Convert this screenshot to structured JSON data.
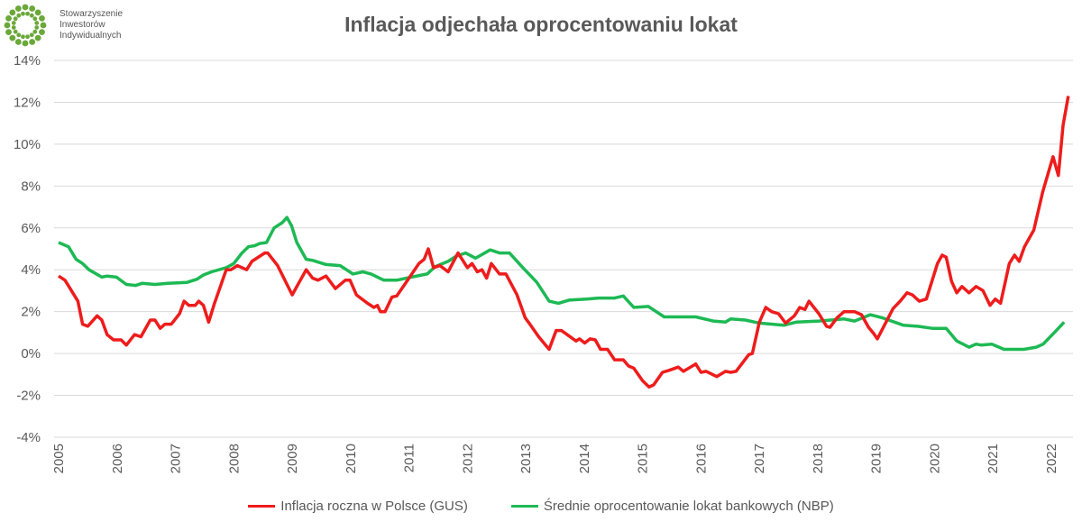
{
  "logo": {
    "lines": [
      "Stowarzyszenie",
      "Inwestorów",
      "Indywidualnych"
    ],
    "color": "#6aa83a"
  },
  "chart_data": {
    "type": "line",
    "title": "Inflacja odjechała oprocentowaniu lokat",
    "xlabel": "",
    "ylabel": "",
    "xlim": [
      2005,
      2022.3
    ],
    "ylim": [
      -4,
      14
    ],
    "y_ticks": [
      "14%",
      "12%",
      "10%",
      "8%",
      "6%",
      "4%",
      "2%",
      "0%",
      "-2%",
      "-4%"
    ],
    "x_ticks": [
      "2005",
      "2006",
      "2007",
      "2008",
      "2009",
      "2010",
      "2011",
      "2012",
      "2013",
      "2014",
      "2015",
      "2016",
      "2017",
      "2018",
      "2019",
      "2020",
      "2021",
      "2022"
    ],
    "grid": true,
    "legend": "bottom",
    "series": [
      {
        "name": "Inflacja roczna w Polsce (GUS)",
        "color": "#ee1c1c",
        "x": [
          2005.0,
          2005.11,
          2005.33,
          2005.41,
          2005.5,
          2005.66,
          2005.74,
          2005.83,
          2005.94,
          2006.07,
          2006.16,
          2006.3,
          2006.41,
          2006.57,
          2006.65,
          2006.74,
          2006.82,
          2006.93,
          2007.07,
          2007.15,
          2007.23,
          2007.34,
          2007.4,
          2007.48,
          2007.57,
          2007.67,
          2007.87,
          2007.95,
          2008.06,
          2008.22,
          2008.31,
          2008.53,
          2008.58,
          2008.75,
          2009.0,
          2009.08,
          2009.24,
          2009.35,
          2009.44,
          2009.58,
          2009.74,
          2009.91,
          2009.99,
          2010.1,
          2010.29,
          2010.4,
          2010.46,
          2010.51,
          2010.59,
          2010.71,
          2010.79,
          2010.95,
          2011.17,
          2011.26,
          2011.33,
          2011.42,
          2011.53,
          2011.67,
          2011.84,
          2012.0,
          2012.08,
          2012.17,
          2012.25,
          2012.33,
          2012.41,
          2012.55,
          2012.66,
          2012.85,
          2012.99,
          2013.07,
          2013.22,
          2013.4,
          2013.52,
          2013.61,
          2013.86,
          2013.92,
          2014.01,
          2014.1,
          2014.19,
          2014.28,
          2014.4,
          2014.52,
          2014.67,
          2014.76,
          2014.85,
          2015.0,
          2015.11,
          2015.19,
          2015.34,
          2015.46,
          2015.61,
          2015.7,
          2015.91,
          2016.0,
          2016.09,
          2016.27,
          2016.42,
          2016.51,
          2016.6,
          2016.82,
          2016.88,
          2017.0,
          2017.11,
          2017.21,
          2017.33,
          2017.45,
          2017.6,
          2017.69,
          2017.78,
          2017.85,
          2018.02,
          2018.15,
          2018.21,
          2018.33,
          2018.45,
          2018.63,
          2018.75,
          2018.87,
          2018.96,
          2019.02,
          2019.29,
          2019.41,
          2019.53,
          2019.62,
          2019.74,
          2019.86,
          2020.05,
          2020.13,
          2020.2,
          2020.29,
          2020.38,
          2020.47,
          2020.59,
          2020.71,
          2020.83,
          2020.95,
          2021.04,
          2021.13,
          2021.28,
          2021.37,
          2021.45,
          2021.54,
          2021.7,
          2021.85,
          2022.03,
          2022.12,
          2022.2,
          2022.29
        ],
        "values": [
          3.7,
          3.5,
          2.5,
          1.4,
          1.3,
          1.8,
          1.6,
          0.9,
          0.65,
          0.65,
          0.4,
          0.9,
          0.8,
          1.6,
          1.6,
          1.2,
          1.4,
          1.4,
          1.9,
          2.5,
          2.3,
          2.3,
          2.5,
          2.3,
          1.5,
          2.4,
          4.0,
          4.0,
          4.2,
          4.0,
          4.4,
          4.8,
          4.8,
          4.2,
          2.8,
          3.2,
          4.0,
          3.6,
          3.5,
          3.7,
          3.1,
          3.5,
          3.5,
          2.8,
          2.4,
          2.2,
          2.3,
          2.0,
          2.0,
          2.7,
          2.75,
          3.4,
          4.3,
          4.5,
          5.0,
          4.1,
          4.2,
          3.9,
          4.8,
          4.1,
          4.3,
          3.9,
          4.0,
          3.6,
          4.3,
          3.8,
          3.8,
          2.8,
          1.7,
          1.4,
          0.8,
          0.2,
          1.1,
          1.1,
          0.6,
          0.7,
          0.5,
          0.7,
          0.65,
          0.2,
          0.2,
          -0.3,
          -0.3,
          -0.6,
          -0.7,
          -1.3,
          -1.6,
          -1.5,
          -0.9,
          -0.8,
          -0.65,
          -0.85,
          -0.5,
          -0.9,
          -0.85,
          -1.1,
          -0.85,
          -0.9,
          -0.85,
          -0.05,
          0.0,
          1.5,
          2.2,
          2.0,
          1.9,
          1.45,
          1.8,
          2.2,
          2.1,
          2.5,
          1.9,
          1.3,
          1.25,
          1.7,
          2.0,
          2.0,
          1.85,
          1.25,
          0.95,
          0.7,
          2.15,
          2.5,
          2.9,
          2.8,
          2.5,
          2.6,
          4.3,
          4.7,
          4.6,
          3.45,
          2.9,
          3.2,
          2.9,
          3.2,
          3.0,
          2.3,
          2.6,
          2.4,
          4.3,
          4.7,
          4.4,
          5.1,
          5.9,
          7.7,
          9.4,
          8.5,
          10.9,
          12.3
        ]
      },
      {
        "name": "Średnie oprocentowanie lokat bankowych (NBP)",
        "color": "#1db954",
        "x": [
          2005.0,
          2005.17,
          2005.3,
          2005.41,
          2005.52,
          2005.74,
          2005.83,
          2005.99,
          2006.16,
          2006.32,
          2006.43,
          2006.65,
          2006.87,
          2007.2,
          2007.37,
          2007.48,
          2007.62,
          2007.87,
          2008.0,
          2008.14,
          2008.25,
          2008.36,
          2008.44,
          2008.56,
          2008.69,
          2008.83,
          2008.91,
          2008.99,
          2009.08,
          2009.24,
          2009.35,
          2009.58,
          2009.82,
          2010.04,
          2010.21,
          2010.35,
          2010.57,
          2010.79,
          2011.04,
          2011.31,
          2011.45,
          2011.67,
          2011.81,
          2011.97,
          2012.14,
          2012.39,
          2012.55,
          2012.72,
          2012.95,
          2013.19,
          2013.4,
          2013.56,
          2013.74,
          2014.04,
          2014.25,
          2014.52,
          2014.67,
          2014.85,
          2015.1,
          2015.37,
          2015.61,
          2015.91,
          2016.21,
          2016.42,
          2016.51,
          2016.76,
          2017.0,
          2017.42,
          2017.63,
          2018.02,
          2018.45,
          2018.63,
          2018.9,
          2019.11,
          2019.47,
          2019.71,
          2019.96,
          2020.2,
          2020.38,
          2020.59,
          2020.71,
          2020.8,
          2020.98,
          2021.19,
          2021.53,
          2021.74,
          2021.86,
          2022.07,
          2022.22
        ],
        "values": [
          5.3,
          5.1,
          4.5,
          4.3,
          4.0,
          3.65,
          3.7,
          3.65,
          3.3,
          3.25,
          3.35,
          3.3,
          3.35,
          3.4,
          3.55,
          3.75,
          3.9,
          4.1,
          4.3,
          4.8,
          5.1,
          5.15,
          5.25,
          5.3,
          6.0,
          6.25,
          6.5,
          6.1,
          5.3,
          4.5,
          4.45,
          4.25,
          4.2,
          3.8,
          3.9,
          3.8,
          3.5,
          3.5,
          3.65,
          3.8,
          4.15,
          4.4,
          4.65,
          4.8,
          4.55,
          4.95,
          4.8,
          4.8,
          4.1,
          3.4,
          2.5,
          2.4,
          2.55,
          2.6,
          2.65,
          2.65,
          2.75,
          2.2,
          2.25,
          1.75,
          1.75,
          1.75,
          1.55,
          1.5,
          1.65,
          1.6,
          1.45,
          1.35,
          1.5,
          1.55,
          1.65,
          1.55,
          1.85,
          1.7,
          1.35,
          1.3,
          1.2,
          1.2,
          0.6,
          0.3,
          0.45,
          0.4,
          0.45,
          0.2,
          0.2,
          0.3,
          0.45,
          1.05,
          1.5
        ]
      }
    ]
  }
}
